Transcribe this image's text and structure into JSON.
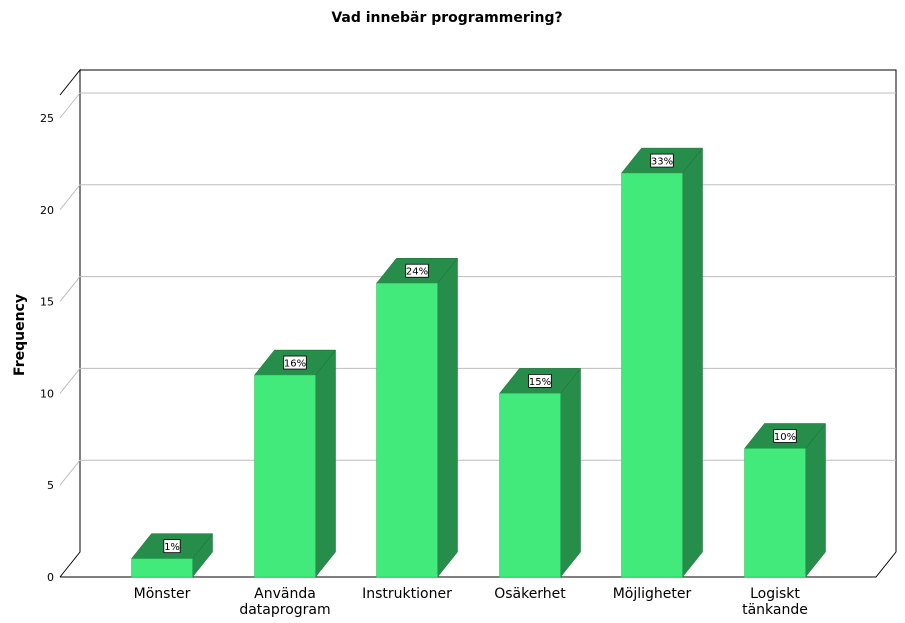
{
  "chart_data": {
    "type": "bar",
    "title": "Vad innebär programmering?",
    "xlabel": "",
    "ylabel": "Frequency",
    "ylim": [
      0,
      25
    ],
    "yticks": [
      0,
      5,
      10,
      15,
      20,
      25
    ],
    "grid": true,
    "categories": [
      [
        "Mönster"
      ],
      [
        "Använda",
        "dataprogram"
      ],
      [
        "Instruktioner"
      ],
      [
        "Osäkerhet"
      ],
      [
        "Möjligheter"
      ],
      [
        "Logiskt",
        "tänkande"
      ]
    ],
    "values": [
      1,
      11,
      16,
      10,
      22,
      7
    ],
    "data_labels": [
      "1%",
      "16%",
      "24%",
      "15%",
      "33%",
      "10%"
    ],
    "colors": {
      "front": "#42ea7b",
      "side": "#268e4a",
      "top": "#268e4a",
      "grid": "#bdbdbd",
      "axis": "#000000"
    }
  }
}
